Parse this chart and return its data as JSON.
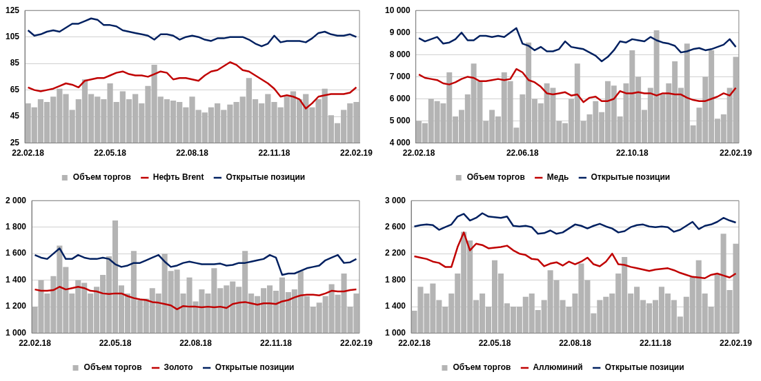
{
  "chart_data": [
    {
      "type": "bar",
      "categories": [
        "22.02.18",
        null,
        null,
        null,
        null,
        null,
        null,
        null,
        null,
        null,
        null,
        null,
        null,
        "22.05.18",
        null,
        null,
        null,
        null,
        null,
        null,
        null,
        null,
        null,
        null,
        null,
        null,
        "22.08.18",
        null,
        null,
        null,
        null,
        null,
        null,
        null,
        null,
        null,
        null,
        null,
        null,
        "22.11.18",
        null,
        null,
        null,
        null,
        null,
        null,
        null,
        null,
        null,
        null,
        null,
        null,
        "22.02.19"
      ],
      "series": [
        {
          "name": "Объем торгов",
          "color": "#b4b4b4",
          "values": [
            55,
            52,
            58,
            56,
            60,
            66,
            62,
            50,
            58,
            73,
            62,
            60,
            58,
            70,
            56,
            64,
            58,
            62,
            55,
            68,
            84,
            60,
            58,
            57,
            56,
            52,
            60,
            50,
            48,
            52,
            55,
            50,
            54,
            56,
            60,
            74,
            58,
            55,
            62,
            56,
            52,
            60,
            64,
            58,
            62,
            52,
            58,
            66,
            46,
            40,
            50,
            55,
            56
          ]
        },
        {
          "name": "Нефть Brent",
          "type": "line",
          "color": "#c00000",
          "values": [
            67,
            65,
            64,
            65,
            66,
            68,
            70,
            69,
            67,
            72,
            73,
            74,
            74,
            76,
            78,
            79,
            77,
            76,
            76,
            75,
            77,
            79,
            78,
            73,
            74,
            74,
            73,
            72,
            76,
            79,
            80,
            83,
            86,
            84,
            80,
            79,
            76,
            73,
            70,
            66,
            60,
            61,
            60,
            58,
            51,
            55,
            60,
            61,
            62,
            62,
            62,
            63,
            67
          ]
        },
        {
          "name": "Открытые позиции",
          "type": "line",
          "color": "#002060",
          "values": [
            110,
            106,
            107,
            109,
            110,
            109,
            112,
            115,
            115,
            117,
            119,
            118,
            114,
            114,
            113,
            110,
            109,
            108,
            107,
            106,
            103,
            107,
            107,
            106,
            103,
            105,
            106,
            105,
            103,
            102,
            104,
            104,
            105,
            105,
            105,
            103,
            100,
            98,
            100,
            106,
            101,
            102,
            102,
            102,
            101,
            104,
            108,
            109,
            107,
            106,
            106,
            107,
            105
          ]
        }
      ],
      "ylim": [
        25,
        125
      ],
      "yticks": [
        25,
        45,
        65,
        85,
        105,
        125
      ],
      "grid": "y",
      "legend": "bottom",
      "marker": "none"
    },
    {
      "type": "bar",
      "categories": [
        "22.02.18",
        null,
        null,
        null,
        null,
        null,
        null,
        null,
        null,
        null,
        null,
        null,
        null,
        null,
        null,
        null,
        null,
        "22.06.18",
        null,
        null,
        null,
        null,
        null,
        null,
        null,
        null,
        null,
        null,
        null,
        null,
        null,
        null,
        null,
        null,
        null,
        "22.10.18",
        null,
        null,
        null,
        null,
        null,
        null,
        null,
        null,
        null,
        null,
        null,
        null,
        null,
        null,
        null,
        null,
        "22.02.19"
      ],
      "series": [
        {
          "name": "Объем торгов",
          "color": "#b4b4b4",
          "values": [
            5000,
            4900,
            6000,
            5900,
            5800,
            7200,
            5200,
            5500,
            6200,
            7600,
            6800,
            5000,
            5500,
            5200,
            7200,
            6800,
            4700,
            6200,
            8550,
            6000,
            5800,
            6700,
            6500,
            5000,
            4900,
            6000,
            7600,
            5000,
            5300,
            5900,
            5400,
            6800,
            6600,
            5200,
            6700,
            8200,
            7000,
            5500,
            6500,
            9100,
            6200,
            6700,
            7700,
            6500,
            8500,
            4800,
            5600,
            7000,
            8200,
            5100,
            5300,
            6500,
            7900
          ]
        },
        {
          "name": "Медь",
          "type": "line",
          "color": "#c00000",
          "values": [
            7100,
            6950,
            6900,
            6850,
            6700,
            6650,
            6750,
            6900,
            7000,
            6950,
            6800,
            6800,
            6850,
            6900,
            6850,
            6900,
            7350,
            7200,
            6850,
            6750,
            6550,
            6250,
            6200,
            6250,
            6300,
            6150,
            6200,
            5850,
            6050,
            6100,
            5900,
            5900,
            6000,
            6350,
            6250,
            6250,
            6300,
            6250,
            6250,
            6150,
            6250,
            6250,
            6200,
            6200,
            6050,
            5950,
            5900,
            5900,
            6000,
            6100,
            6250,
            6150,
            6500
          ]
        },
        {
          "name": "Открытые позиции",
          "type": "line",
          "color": "#002060",
          "values": [
            8750,
            8600,
            8700,
            8800,
            8500,
            8550,
            8700,
            9000,
            8650,
            8650,
            8850,
            8850,
            8800,
            8850,
            8800,
            9000,
            9200,
            8500,
            8400,
            8200,
            8350,
            8150,
            8150,
            8250,
            8600,
            8350,
            8300,
            8250,
            8100,
            7950,
            7700,
            7900,
            8200,
            8600,
            8550,
            8700,
            8650,
            8600,
            8800,
            8650,
            8550,
            8500,
            8400,
            8100,
            8150,
            8250,
            8300,
            8200,
            8250,
            8350,
            8450,
            8700,
            8350
          ]
        }
      ],
      "ylim": [
        4000,
        10000
      ],
      "yticks": [
        {
          "value": 4000,
          "label": "4 000"
        },
        {
          "value": 5000,
          "label": "5 000"
        },
        {
          "value": 6000,
          "label": "6 000"
        },
        {
          "value": 7000,
          "label": "7 000"
        },
        {
          "value": 8000,
          "label": "8 000"
        },
        {
          "value": 9000,
          "label": "9 000"
        },
        {
          "value": 10000,
          "label": "10 000"
        }
      ],
      "grid": "y",
      "legend": "bottom",
      "marker": "none"
    },
    {
      "type": "bar",
      "categories": [
        "22.02.18",
        null,
        null,
        null,
        null,
        null,
        null,
        null,
        null,
        null,
        null,
        null,
        null,
        "22.05.18",
        null,
        null,
        null,
        null,
        null,
        null,
        null,
        null,
        null,
        null,
        null,
        null,
        "22.08.18",
        null,
        null,
        null,
        null,
        null,
        null,
        null,
        null,
        null,
        null,
        null,
        null,
        "22.11.18",
        null,
        null,
        null,
        null,
        null,
        null,
        null,
        null,
        null,
        null,
        null,
        null,
        "22.02.19"
      ],
      "series": [
        {
          "name": "Объем торгов",
          "color": "#b4b4b4",
          "values": [
            1200,
            1400,
            1300,
            1430,
            1660,
            1500,
            1300,
            1400,
            1380,
            1300,
            1350,
            1440,
            1580,
            1850,
            1360,
            1300,
            1620,
            1250,
            1260,
            1340,
            1300,
            1600,
            1470,
            1480,
            1300,
            1420,
            1240,
            1330,
            1300,
            1490,
            1340,
            1360,
            1390,
            1350,
            1620,
            1300,
            1280,
            1340,
            1360,
            1320,
            1420,
            1310,
            1330,
            1470,
            1280,
            1200,
            1230,
            1280,
            1370,
            1290,
            1450,
            1200,
            1300
          ]
        },
        {
          "name": "Золото",
          "type": "line",
          "color": "#c00000",
          "values": [
            1330,
            1320,
            1320,
            1325,
            1350,
            1330,
            1340,
            1350,
            1340,
            1320,
            1315,
            1300,
            1295,
            1300,
            1300,
            1280,
            1265,
            1255,
            1250,
            1235,
            1230,
            1220,
            1210,
            1180,
            1205,
            1200,
            1200,
            1195,
            1200,
            1195,
            1200,
            1190,
            1220,
            1230,
            1235,
            1225,
            1215,
            1225,
            1225,
            1220,
            1240,
            1250,
            1270,
            1285,
            1290,
            1290,
            1285,
            1300,
            1320,
            1315,
            1315,
            1325,
            1330
          ]
        },
        {
          "name": "Открытые позиции",
          "type": "line",
          "color": "#002060",
          "values": [
            1590,
            1570,
            1560,
            1600,
            1640,
            1560,
            1560,
            1590,
            1570,
            1560,
            1560,
            1570,
            1560,
            1520,
            1500,
            1510,
            1530,
            1530,
            1550,
            1570,
            1590,
            1540,
            1500,
            1510,
            1530,
            1540,
            1530,
            1520,
            1520,
            1520,
            1525,
            1510,
            1515,
            1530,
            1530,
            1540,
            1550,
            1560,
            1590,
            1570,
            1440,
            1450,
            1450,
            1470,
            1490,
            1500,
            1510,
            1550,
            1570,
            1590,
            1530,
            1535,
            1560
          ]
        }
      ],
      "ylim": [
        1000,
        2000
      ],
      "yticks": [
        {
          "value": 1000,
          "label": "1 000"
        },
        {
          "value": 1200,
          "label": "1 200"
        },
        {
          "value": 1400,
          "label": "1 400"
        },
        {
          "value": 1600,
          "label": "1 600"
        },
        {
          "value": 1800,
          "label": "1 800"
        },
        {
          "value": 2000,
          "label": "2 000"
        }
      ],
      "grid": "y",
      "legend": "bottom",
      "marker": "none"
    },
    {
      "type": "bar",
      "categories": [
        "22.02.18",
        null,
        null,
        null,
        null,
        null,
        null,
        null,
        null,
        null,
        null,
        null,
        null,
        "22.05.18",
        null,
        null,
        null,
        null,
        null,
        null,
        null,
        null,
        null,
        null,
        null,
        null,
        "22.08.18",
        null,
        null,
        null,
        null,
        null,
        null,
        null,
        null,
        null,
        null,
        null,
        null,
        "22.11.18",
        null,
        null,
        null,
        null,
        null,
        null,
        null,
        null,
        null,
        null,
        null,
        null,
        "22.02.19"
      ],
      "series": [
        {
          "name": "Объем торгов",
          "color": "#b4b4b4",
          "values": [
            1340,
            1700,
            1600,
            1750,
            1500,
            1400,
            1600,
            1900,
            2530,
            2400,
            1500,
            1600,
            1400,
            2100,
            1900,
            1450,
            1400,
            1400,
            1550,
            1600,
            1350,
            1500,
            1950,
            1800,
            1500,
            1400,
            1600,
            2050,
            1800,
            1300,
            1500,
            1550,
            1600,
            1900,
            2150,
            1600,
            1700,
            1500,
            1450,
            1500,
            1700,
            1600,
            1500,
            1250,
            1550,
            1850,
            2100,
            1600,
            1400,
            1900,
            2500,
            1650,
            2350
          ]
        },
        {
          "name": "Аллюминий",
          "type": "line",
          "color": "#c00000",
          "values": [
            2160,
            2140,
            2120,
            2080,
            2060,
            2000,
            2000,
            2300,
            2520,
            2250,
            2350,
            2330,
            2280,
            2290,
            2300,
            2320,
            2250,
            2200,
            2180,
            2120,
            2110,
            2010,
            2050,
            2070,
            2020,
            2080,
            2040,
            2080,
            2140,
            2040,
            2010,
            2080,
            2200,
            2040,
            2030,
            2000,
            1980,
            1960,
            1940,
            1960,
            1970,
            1980,
            1950,
            1910,
            1880,
            1850,
            1840,
            1830,
            1880,
            1900,
            1870,
            1840,
            1900
          ]
        },
        {
          "name": "Открытые позиции",
          "type": "line",
          "color": "#002060",
          "values": [
            2610,
            2630,
            2640,
            2630,
            2560,
            2600,
            2640,
            2760,
            2800,
            2700,
            2740,
            2810,
            2760,
            2750,
            2740,
            2760,
            2620,
            2610,
            2620,
            2600,
            2500,
            2510,
            2550,
            2500,
            2520,
            2580,
            2640,
            2620,
            2580,
            2620,
            2650,
            2610,
            2580,
            2520,
            2540,
            2600,
            2630,
            2640,
            2610,
            2600,
            2610,
            2600,
            2530,
            2560,
            2620,
            2680,
            2570,
            2620,
            2640,
            2680,
            2740,
            2700,
            2670
          ]
        }
      ],
      "ylim": [
        1000,
        3000
      ],
      "yticks": [
        {
          "value": 1000,
          "label": "1 000"
        },
        {
          "value": 1400,
          "label": "1 400"
        },
        {
          "value": 1800,
          "label": "1 800"
        },
        {
          "value": 2200,
          "label": "2 200"
        },
        {
          "value": 2600,
          "label": "2 600"
        },
        {
          "value": 3000,
          "label": "3 000"
        }
      ],
      "grid": "y",
      "legend": "bottom",
      "marker": "none"
    }
  ]
}
